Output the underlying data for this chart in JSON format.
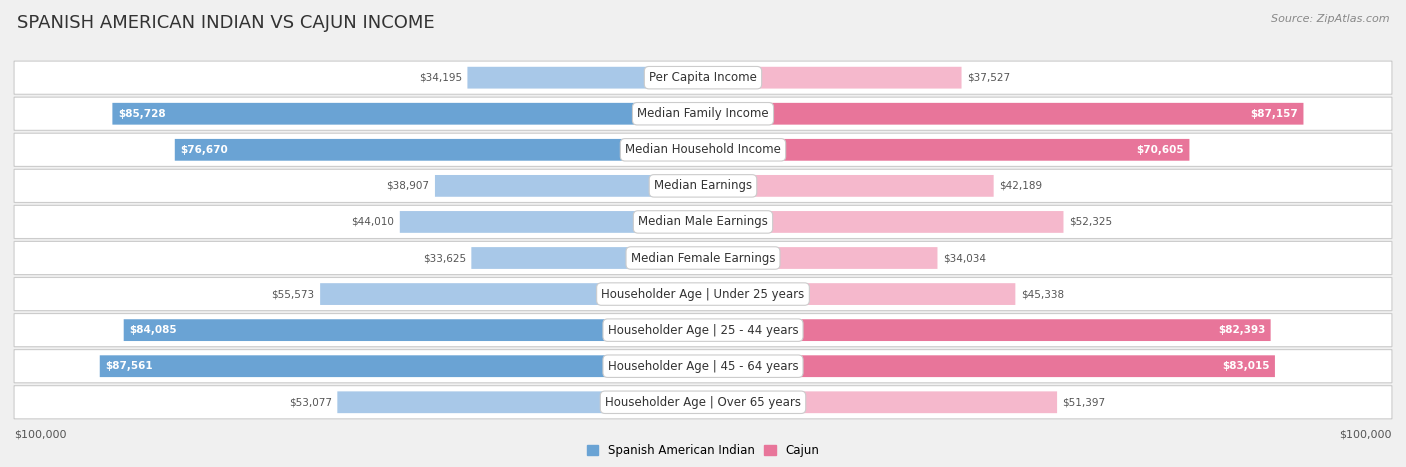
{
  "title": "SPANISH AMERICAN INDIAN VS CAJUN INCOME",
  "source": "Source: ZipAtlas.com",
  "categories": [
    "Per Capita Income",
    "Median Family Income",
    "Median Household Income",
    "Median Earnings",
    "Median Male Earnings",
    "Median Female Earnings",
    "Householder Age | Under 25 years",
    "Householder Age | 25 - 44 years",
    "Householder Age | 45 - 64 years",
    "Householder Age | Over 65 years"
  ],
  "left_values": [
    34195,
    85728,
    76670,
    38907,
    44010,
    33625,
    55573,
    84085,
    87561,
    53077
  ],
  "right_values": [
    37527,
    87157,
    70605,
    42189,
    52325,
    34034,
    45338,
    82393,
    83015,
    51397
  ],
  "left_labels": [
    "$34,195",
    "$85,728",
    "$76,670",
    "$38,907",
    "$44,010",
    "$33,625",
    "$55,573",
    "$84,085",
    "$87,561",
    "$53,077"
  ],
  "right_labels": [
    "$37,527",
    "$87,157",
    "$70,605",
    "$42,189",
    "$52,325",
    "$34,034",
    "$45,338",
    "$82,393",
    "$83,015",
    "$51,397"
  ],
  "max_value": 100000,
  "left_color_small": "#a8c8e8",
  "left_color_large": "#6aa3d4",
  "right_color_small": "#f5b8cc",
  "right_color_large": "#e8759a",
  "background_color": "#f0f0f0",
  "row_bg": "#ffffff",
  "row_border": "#cccccc",
  "legend_left": "Spanish American Indian",
  "legend_right": "Cajun",
  "xlabel_left": "$100,000",
  "xlabel_right": "$100,000",
  "threshold": 60000,
  "title_color": "#333333",
  "source_color": "#888888",
  "label_inside_color": "#ffffff",
  "label_outside_color": "#555555",
  "cat_label_color": "#333333",
  "cat_label_fontsize": 8.5,
  "val_label_fontsize": 7.5,
  "title_fontsize": 13
}
